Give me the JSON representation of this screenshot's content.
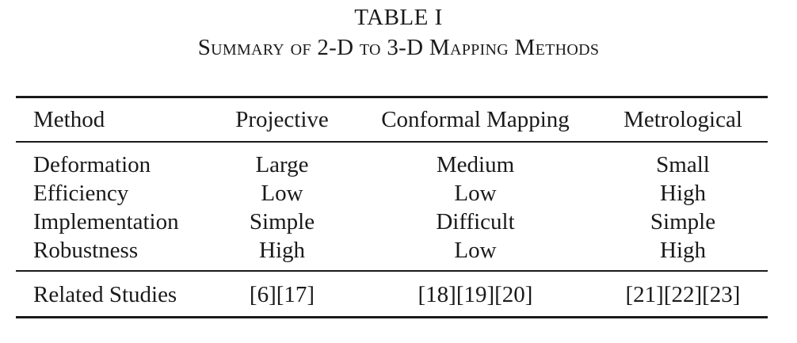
{
  "caption": {
    "label": "TABLE I",
    "title": "Summary of 2-D to 3-D Mapping Methods"
  },
  "table": {
    "headers": [
      "Method",
      "Projective",
      "Conformal Mapping",
      "Metrological"
    ],
    "rows": [
      [
        "Deformation",
        "Large",
        "Medium",
        "Small"
      ],
      [
        "Efficiency",
        "Low",
        "Low",
        "High"
      ],
      [
        "Implementation",
        "Simple",
        "Difficult",
        "Simple"
      ],
      [
        "Robustness",
        "High",
        "Low",
        "High"
      ]
    ],
    "footer_row": [
      "Related Studies",
      "[6][17]",
      "[18][19][20]",
      "[21][22][23]"
    ]
  }
}
